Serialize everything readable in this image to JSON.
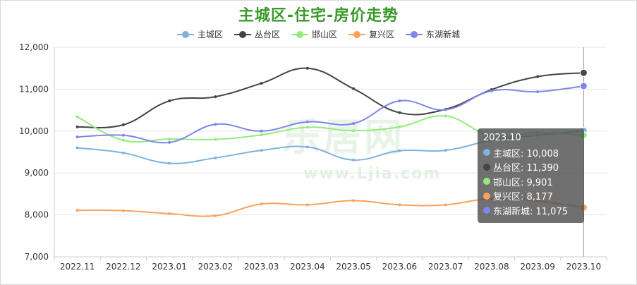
{
  "page": {
    "watermark_text": "乐居网",
    "watermark_url": "www.Ljia.com"
  },
  "chart_data": {
    "type": "line",
    "title": "主城区-住宅-房价走势",
    "categories": [
      "2022.11",
      "2022.12",
      "2023.01",
      "2023.02",
      "2023.03",
      "2023.04",
      "2023.05",
      "2023.06",
      "2023.07",
      "2023.08",
      "2023.09",
      "2023.10"
    ],
    "ylim": [
      7000,
      12000
    ],
    "yticks": [
      7000,
      8000,
      9000,
      10000,
      11000,
      12000
    ],
    "ytick_labels": [
      "7,000",
      "8,000",
      "9,000",
      "10,000",
      "11,000",
      "12,000"
    ],
    "grid": true,
    "legend_position": "top-center",
    "series": [
      {
        "name": "主城区",
        "color": "#7eb3e0",
        "values": [
          9600,
          9480,
          9230,
          9360,
          9540,
          9620,
          9310,
          9530,
          9540,
          9780,
          9900,
          10008
        ]
      },
      {
        "name": "丛台区",
        "color": "#434348",
        "values": [
          10100,
          10150,
          10720,
          10820,
          11140,
          11500,
          11010,
          10440,
          10520,
          10990,
          11300,
          11390
        ]
      },
      {
        "name": "邯山区",
        "color": "#90ed7d",
        "values": [
          10340,
          9780,
          9810,
          9800,
          9910,
          10090,
          10010,
          10100,
          10360,
          9880,
          9960,
          9901
        ]
      },
      {
        "name": "复兴区",
        "color": "#f7a35c",
        "values": [
          8110,
          8100,
          8030,
          7980,
          8260,
          8240,
          8340,
          8240,
          8240,
          8390,
          8330,
          8177
        ]
      },
      {
        "name": "东湖新城",
        "color": "#8085e9",
        "values": [
          9860,
          9900,
          9730,
          10160,
          10000,
          10220,
          10180,
          10720,
          10510,
          10960,
          10940,
          11075
        ]
      }
    ],
    "tooltip": {
      "title": "2023.10",
      "rows": [
        "主城区: 10,008",
        "丛台区: 11,390",
        "邯山区: 9,901",
        "复兴区: 8,177",
        "东湖新城: 11,075"
      ]
    }
  }
}
